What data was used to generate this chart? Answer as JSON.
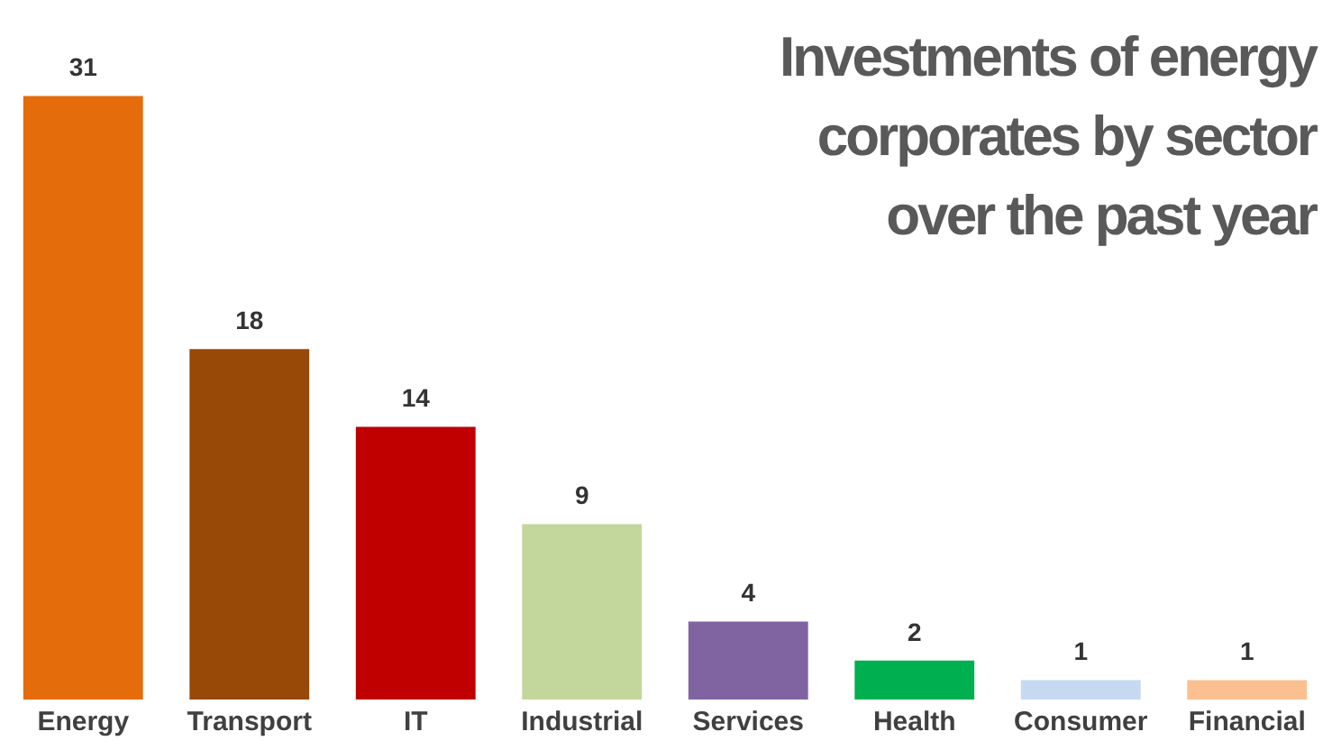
{
  "chart_data": {
    "type": "bar",
    "title": "Investments of energy corporates by sector over the past year",
    "categories": [
      "Energy",
      "Transport",
      "IT",
      "Industrial",
      "Services",
      "Health",
      "Consumer",
      "Financial"
    ],
    "values": [
      31,
      18,
      14,
      9,
      4,
      2,
      1,
      1
    ],
    "colors": [
      "#e46c0a",
      "#984807",
      "#c00000",
      "#c3d69b",
      "#8064a2",
      "#00b050",
      "#c6d9f1",
      "#fac090"
    ],
    "data_labels": true,
    "grid": false,
    "legend": false
  }
}
